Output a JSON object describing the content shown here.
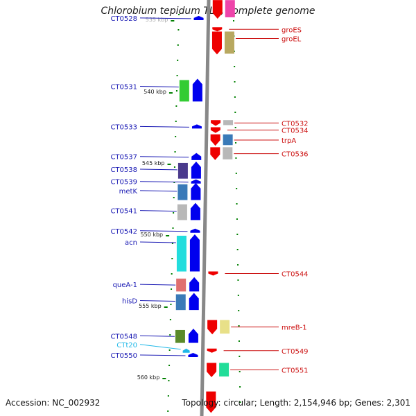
{
  "title": "Chlorobium tepidum TLS, complete genome",
  "accession": "Accession: NC_002932",
  "topology": "Topology: circular; Length: 2,154,946 bp; Genes: 2,301",
  "scale_labels": [
    {
      "text": "535 kbp",
      "pos": 535,
      "faded": true
    },
    {
      "text": "540 kbp",
      "pos": 540
    },
    {
      "text": "545 kbp",
      "pos": 545
    },
    {
      "text": "550 kbp",
      "pos": 550
    },
    {
      "text": "555 kbp",
      "pos": 555
    },
    {
      "text": "560 kbp",
      "pos": 560
    }
  ],
  "colors": {
    "left_label": "#1a1ab4",
    "right_label": "#cc1010",
    "trna_label": "#20b8e8",
    "strand_minus": "#0000ee",
    "strand_plus": "#ee0000",
    "axis": "#888888",
    "tick": "#008000"
  },
  "genes_left": [
    {
      "name": "CT0528",
      "start": 534.7,
      "end": 535.0,
      "cog": ""
    },
    {
      "name": "CT0531",
      "start": 539.1,
      "end": 540.7,
      "cog": "#33cc33"
    },
    {
      "name": "CT0533",
      "start": 542.3,
      "end": 542.5,
      "cog": ""
    },
    {
      "name": "CT0537",
      "start": 544.3,
      "end": 544.8,
      "cog": ""
    },
    {
      "name": "CT0538",
      "start": 544.9,
      "end": 546.1,
      "cog": "#4a3a8c"
    },
    {
      "name": "CT0539",
      "start": 546.15,
      "end": 546.3,
      "cog": ""
    },
    {
      "name": "metK",
      "start": 546.4,
      "end": 547.6,
      "cog": "#3a7ab8"
    },
    {
      "name": "CT0541",
      "start": 547.8,
      "end": 549.0,
      "cog": "#b8b8b8"
    },
    {
      "name": "CT0542",
      "start": 549.6,
      "end": 549.8,
      "cog": ""
    },
    {
      "name": "acn",
      "start": 550.0,
      "end": 552.6,
      "cog": "#22dddd"
    },
    {
      "name": "queA-1",
      "start": 553.0,
      "end": 554.0,
      "cog": "#e07070"
    },
    {
      "name": "hisD",
      "start": 554.1,
      "end": 555.3,
      "cog": "#3a7ab8"
    },
    {
      "name": "CT0548",
      "start": 556.6,
      "end": 557.6,
      "cog": "#5a8a2a"
    },
    {
      "name": "CT0550",
      "start": 558.3,
      "end": 558.45,
      "cog": ""
    }
  ],
  "trna_genes": [
    {
      "name": "CTt20",
      "start": 558.0,
      "end": 558.15
    }
  ],
  "genes_right": [
    {
      "name": "groES",
      "start": 535.5,
      "end": 535.7,
      "cog": ""
    },
    {
      "name": "groEL",
      "start": 535.8,
      "end": 537.4,
      "cog": "#b8a860"
    },
    {
      "name": "CT0532",
      "start": 542.0,
      "end": 542.4,
      "cog": "#b8b8b8"
    },
    {
      "name": "CT0534",
      "start": 542.5,
      "end": 542.9,
      "cog": ""
    },
    {
      "name": "trpA",
      "start": 543.0,
      "end": 543.8,
      "cog": "#3a7ab8"
    },
    {
      "name": "CT0536",
      "start": 543.9,
      "end": 544.8,
      "cog": "#b8b8b8"
    },
    {
      "name": "CT0544",
      "start": 552.6,
      "end": 552.8,
      "cog": ""
    },
    {
      "name": "mreB-1",
      "start": 556.0,
      "end": 557.0,
      "cog": "#e8e088"
    },
    {
      "name": "CT0549",
      "start": 558.0,
      "end": 558.2,
      "cog": ""
    },
    {
      "name": "CT0551",
      "start": 559.0,
      "end": 560.0,
      "cog": "#22dd99"
    }
  ],
  "edge_genes": [
    {
      "strand": "plus",
      "start": 533.6,
      "end": 534.9,
      "cog": "#ee44aa"
    },
    {
      "strand": "plus",
      "start": 561.0,
      "end": 562.5,
      "cog": ""
    }
  ]
}
